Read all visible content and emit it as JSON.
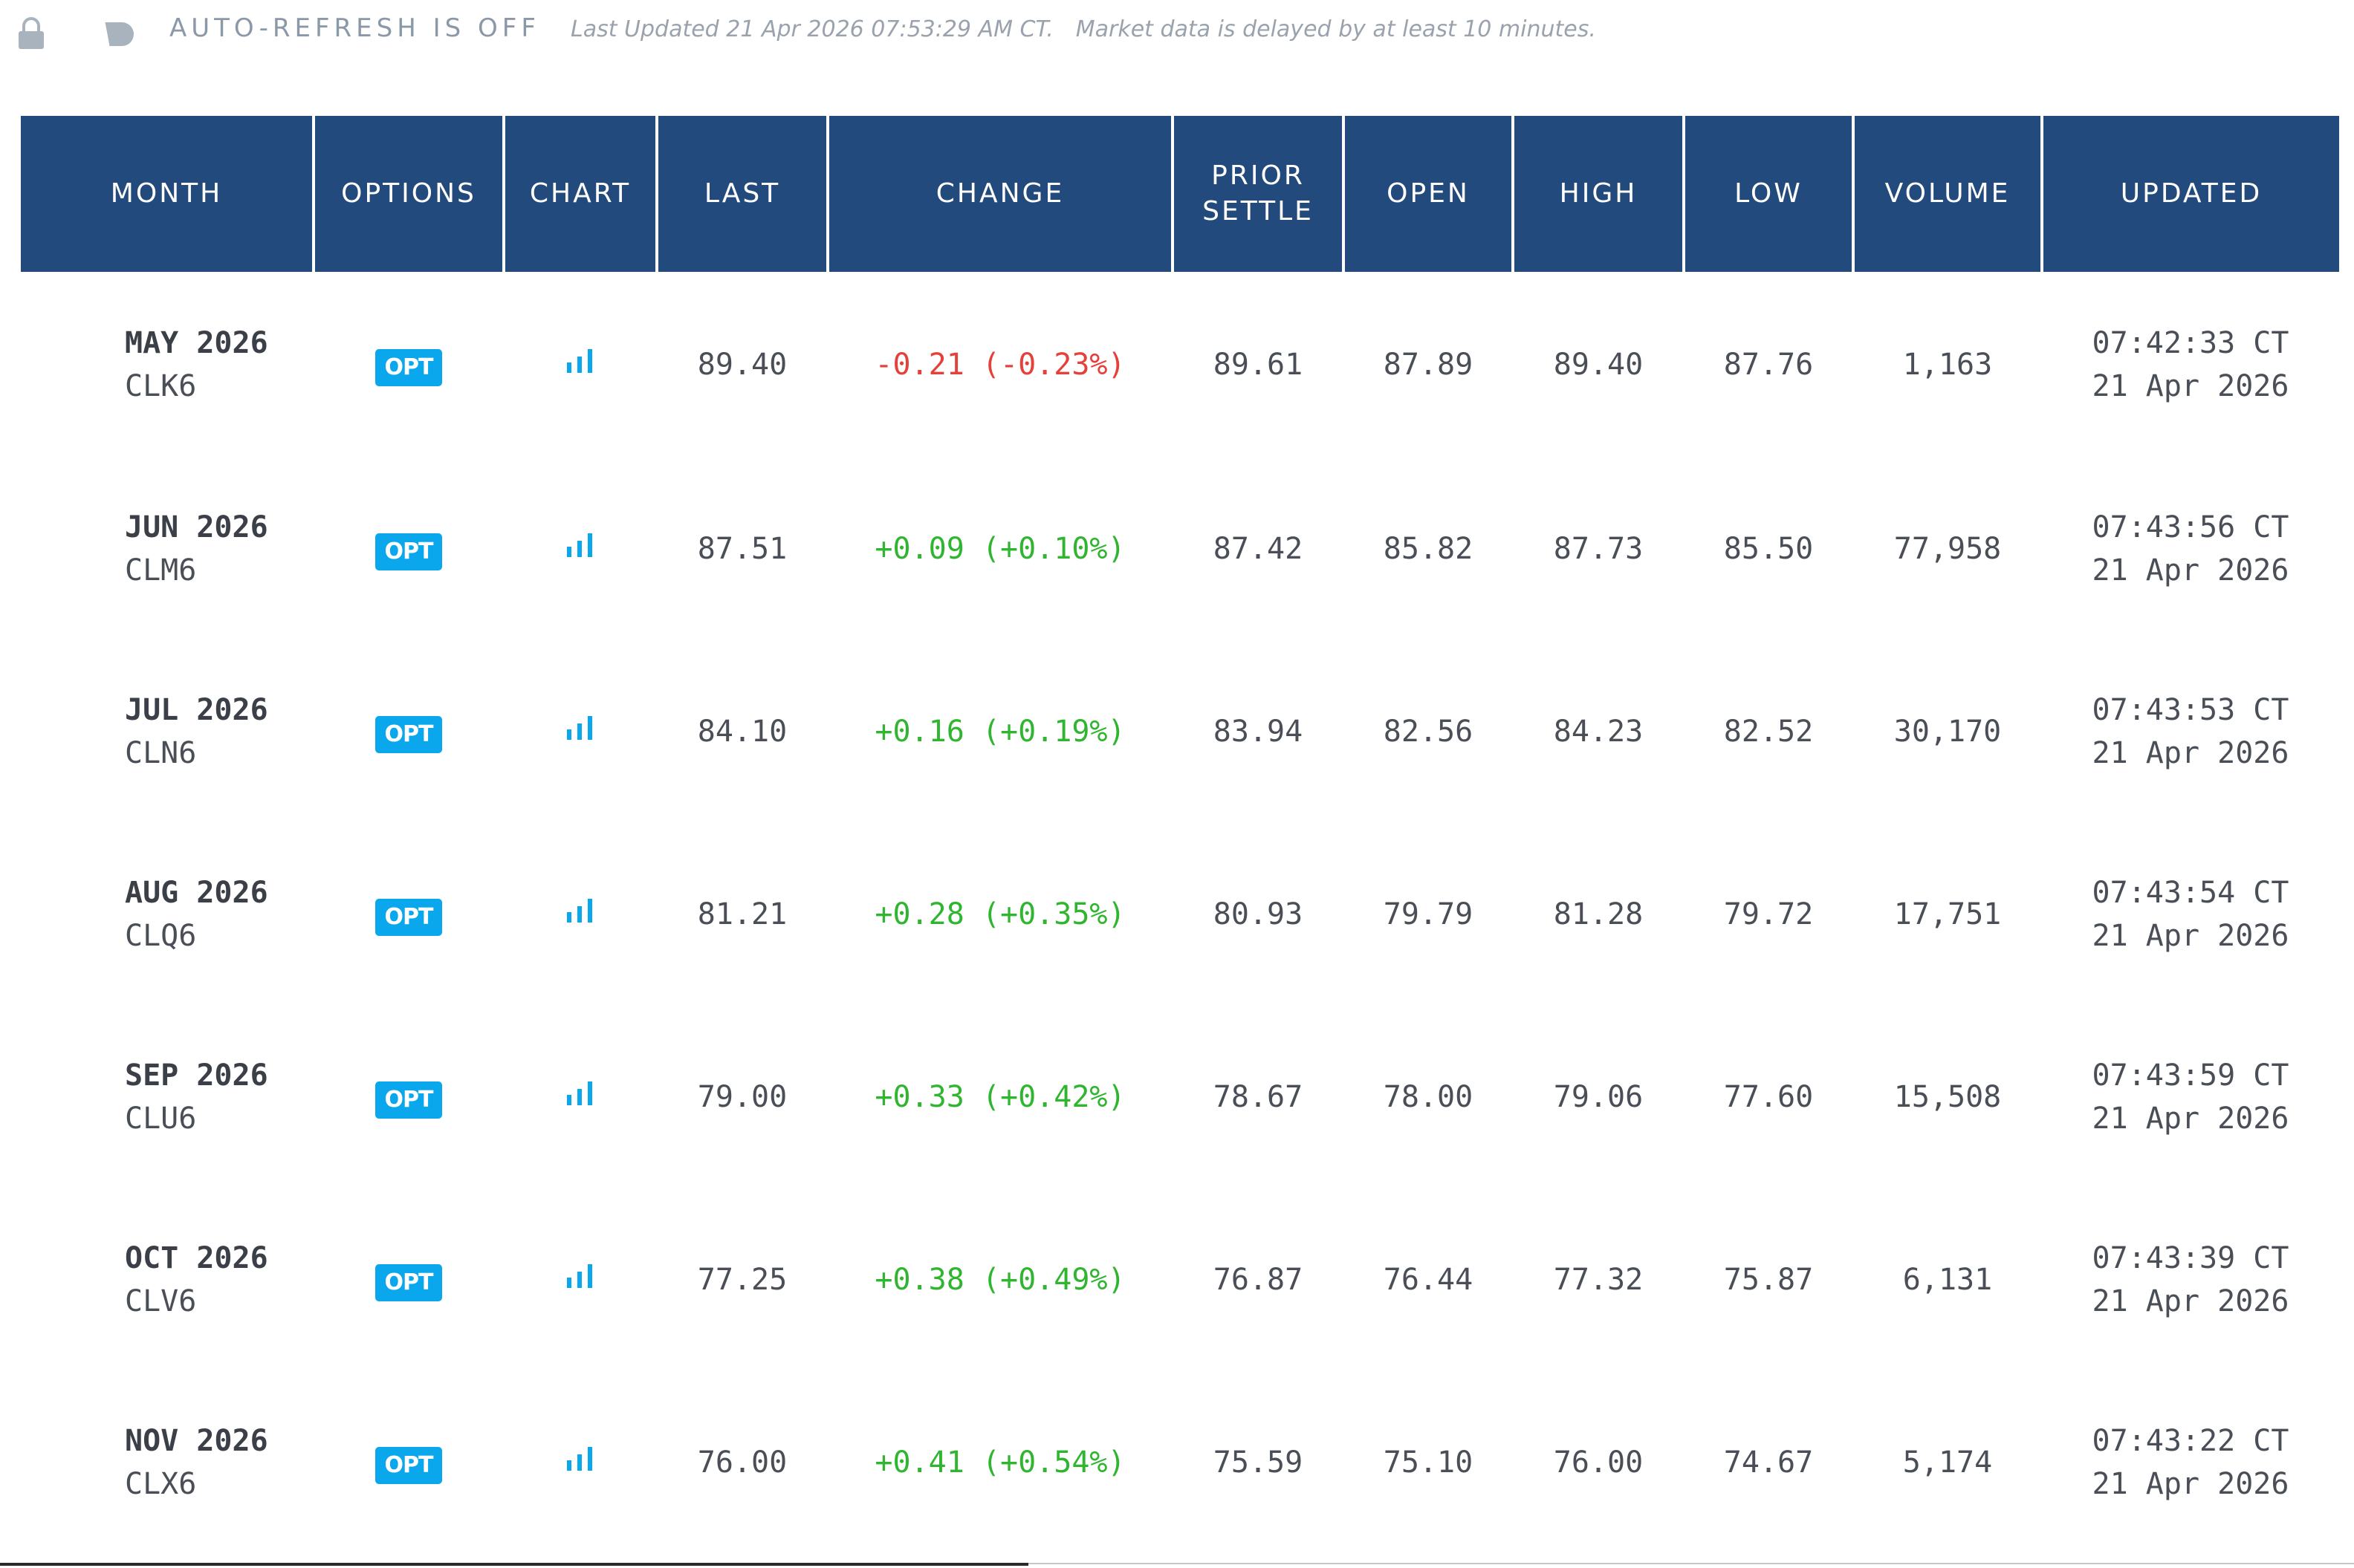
{
  "topbar": {
    "refresh_status": "AUTO-REFRESH IS OFF",
    "last_updated": "Last Updated 21 Apr 2026 07:53:29 AM CT.",
    "delay_notice": "Market data is delayed by at least 10 minutes.",
    "icons": [
      "lock-icon",
      "toggle-icon"
    ]
  },
  "columns": {
    "month": "MONTH",
    "options": "OPTIONS",
    "chart": "CHART",
    "last": "LAST",
    "change": "CHANGE",
    "prior_settle_1": "PRIOR",
    "prior_settle_2": "SETTLE",
    "open": "OPEN",
    "high": "HIGH",
    "low": "LOW",
    "volume": "VOLUME",
    "updated": "UPDATED"
  },
  "opt_label": "OPT",
  "colors": {
    "header_bg": "#234a7c",
    "opt_badge": "#0aa7ec",
    "chart_icon": "#0aa7ec",
    "negative": "#e5403a",
    "positive": "#2fb52f"
  },
  "rows": [
    {
      "month": "MAY 2026",
      "symbol": "CLK6",
      "last": "89.40",
      "change": "-0.21 (-0.23%)",
      "direction": "neg",
      "prior_settle": "89.61",
      "open": "87.89",
      "high": "89.40",
      "low": "87.76",
      "volume": "1,163",
      "updated_time": "07:42:33 CT",
      "updated_date": "21 Apr 2026"
    },
    {
      "month": "JUN 2026",
      "symbol": "CLM6",
      "last": "87.51",
      "change": "+0.09 (+0.10%)",
      "direction": "pos",
      "prior_settle": "87.42",
      "open": "85.82",
      "high": "87.73",
      "low": "85.50",
      "volume": "77,958",
      "updated_time": "07:43:56 CT",
      "updated_date": "21 Apr 2026"
    },
    {
      "month": "JUL 2026",
      "symbol": "CLN6",
      "last": "84.10",
      "change": "+0.16 (+0.19%)",
      "direction": "pos",
      "prior_settle": "83.94",
      "open": "82.56",
      "high": "84.23",
      "low": "82.52",
      "volume": "30,170",
      "updated_time": "07:43:53 CT",
      "updated_date": "21 Apr 2026"
    },
    {
      "month": "AUG 2026",
      "symbol": "CLQ6",
      "last": "81.21",
      "change": "+0.28 (+0.35%)",
      "direction": "pos",
      "prior_settle": "80.93",
      "open": "79.79",
      "high": "81.28",
      "low": "79.72",
      "volume": "17,751",
      "updated_time": "07:43:54 CT",
      "updated_date": "21 Apr 2026"
    },
    {
      "month": "SEP 2026",
      "symbol": "CLU6",
      "last": "79.00",
      "change": "+0.33 (+0.42%)",
      "direction": "pos",
      "prior_settle": "78.67",
      "open": "78.00",
      "high": "79.06",
      "low": "77.60",
      "volume": "15,508",
      "updated_time": "07:43:59 CT",
      "updated_date": "21 Apr 2026"
    },
    {
      "month": "OCT 2026",
      "symbol": "CLV6",
      "last": "77.25",
      "change": "+0.38 (+0.49%)",
      "direction": "pos",
      "prior_settle": "76.87",
      "open": "76.44",
      "high": "77.32",
      "low": "75.87",
      "volume": "6,131",
      "updated_time": "07:43:39 CT",
      "updated_date": "21 Apr 2026"
    },
    {
      "month": "NOV 2026",
      "symbol": "CLX6",
      "last": "76.00",
      "change": "+0.41 (+0.54%)",
      "direction": "pos",
      "prior_settle": "75.59",
      "open": "75.10",
      "high": "76.00",
      "low": "74.67",
      "volume": "5,174",
      "updated_time": "07:43:22 CT",
      "updated_date": "21 Apr 2026"
    }
  ]
}
